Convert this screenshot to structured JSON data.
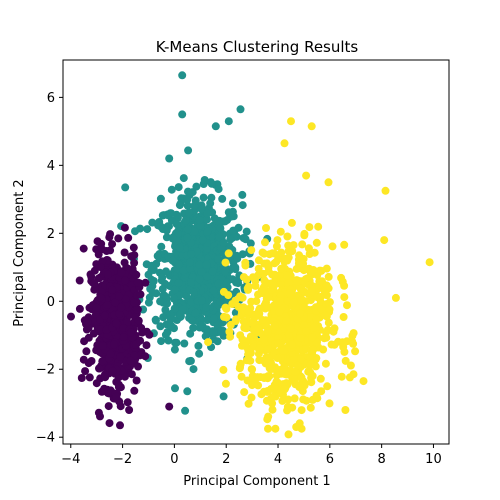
{
  "chart_data": {
    "type": "scatter",
    "title": "K-Means Clustering Results",
    "xlabel": "Principal Component 1",
    "ylabel": "Principal Component 2",
    "xlim": [
      -4.3,
      10.6
    ],
    "ylim": [
      -4.2,
      7.1
    ],
    "xticks": [
      -4,
      -2,
      0,
      2,
      4,
      6,
      8,
      10
    ],
    "yticks": [
      -4,
      -2,
      0,
      2,
      4,
      6
    ],
    "grid": false,
    "legend": "none",
    "colors": {
      "cluster_0": "#440154",
      "cluster_1": "#21918c",
      "cluster_2": "#fde725"
    },
    "clusters": [
      {
        "center": [
          -2.3,
          -0.6
        ],
        "spread": [
          0.45,
          0.95
        ],
        "count": 700
      },
      {
        "center": [
          0.9,
          1.0
        ],
        "spread": [
          0.85,
          1.05
        ],
        "count": 800
      },
      {
        "center": [
          4.3,
          -0.7
        ],
        "spread": [
          0.9,
          1.15
        ],
        "count": 800
      }
    ],
    "outliers": [
      {
        "cluster": 1,
        "x": 0.3,
        "y": 6.65
      },
      {
        "cluster": 1,
        "x": 0.3,
        "y": 5.5
      },
      {
        "cluster": 1,
        "x": 2.55,
        "y": 5.65
      },
      {
        "cluster": 1,
        "x": 2.1,
        "y": 5.3
      },
      {
        "cluster": 1,
        "x": 1.6,
        "y": 5.15
      },
      {
        "cluster": 1,
        "x": -0.2,
        "y": 4.2
      },
      {
        "cluster": 1,
        "x": -1.9,
        "y": 3.35
      },
      {
        "cluster": 1,
        "x": 1.9,
        "y": -2.8
      },
      {
        "cluster": 1,
        "x": 0.5,
        "y": -2.65
      },
      {
        "cluster": 2,
        "x": 9.85,
        "y": 1.15
      },
      {
        "cluster": 2,
        "x": 8.15,
        "y": 3.25
      },
      {
        "cluster": 2,
        "x": 8.1,
        "y": 1.8
      },
      {
        "cluster": 2,
        "x": 8.55,
        "y": 0.1
      },
      {
        "cluster": 2,
        "x": 4.5,
        "y": 5.3
      },
      {
        "cluster": 2,
        "x": 5.3,
        "y": 5.15
      },
      {
        "cluster": 2,
        "x": 5.95,
        "y": 3.5
      },
      {
        "cluster": 2,
        "x": 4.25,
        "y": 4.65
      },
      {
        "cluster": 2,
        "x": 7.3,
        "y": -2.35
      },
      {
        "cluster": 2,
        "x": 6.9,
        "y": -1.25
      },
      {
        "cluster": 2,
        "x": 6.6,
        "y": -3.2
      },
      {
        "cluster": 2,
        "x": 4.7,
        "y": -3.7
      },
      {
        "cluster": 2,
        "x": 1.3,
        "y": -1.2
      },
      {
        "cluster": 0,
        "x": -2.1,
        "y": -3.65
      },
      {
        "cluster": 0,
        "x": -0.2,
        "y": -3.1
      },
      {
        "cluster": 0,
        "x": -3.5,
        "y": 1.55
      },
      {
        "cluster": 0,
        "x": -1.75,
        "y": -3.2
      }
    ]
  }
}
